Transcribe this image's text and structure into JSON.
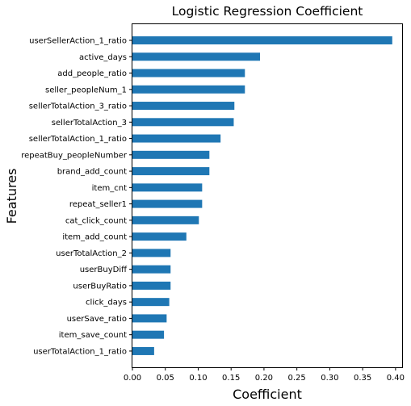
{
  "chart_data": {
    "type": "bar",
    "orientation": "horizontal",
    "title": "Logistic Regression Coefficient",
    "xlabel": "Coefficient",
    "ylabel": "Features",
    "xlim": [
      0,
      0.41
    ],
    "xticks": [
      "0.00",
      "0.05",
      "0.10",
      "0.15",
      "0.20",
      "0.25",
      "0.30",
      "0.35",
      "0.40"
    ],
    "grid": false,
    "bar_color": "#1f77b4",
    "categories": [
      "userSellerAction_1_ratio",
      "active_days",
      "add_people_ratio",
      "seller_peopleNum_1",
      "sellerTotalAction_3_ratio",
      "sellerTotalAction_3",
      "sellerTotalAction_1_ratio",
      "repeatBuy_peopleNumber",
      "brand_add_count",
      "item_cnt",
      "repeat_seller1",
      "cat_click_count",
      "item_add_count",
      "userTotalAction_2",
      "userBuyDiff",
      "userBuyRatio",
      "click_days",
      "userSave_ratio",
      "item_save_count",
      "userTotalAction_1_ratio"
    ],
    "values": [
      0.395,
      0.194,
      0.171,
      0.171,
      0.155,
      0.154,
      0.134,
      0.117,
      0.117,
      0.106,
      0.106,
      0.101,
      0.082,
      0.058,
      0.058,
      0.058,
      0.056,
      0.052,
      0.048,
      0.033
    ]
  }
}
